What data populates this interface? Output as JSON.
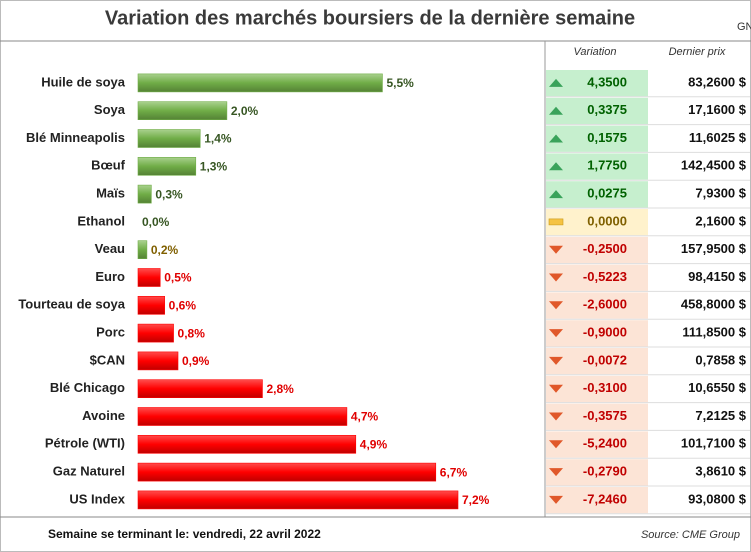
{
  "chart_data": {
    "type": "bar",
    "orientation": "horizontal",
    "title": "Variation des marchés boursiers de la dernière semaine",
    "corner_text": "GN",
    "categories": [
      "Huile de soya",
      "Soya",
      "Blé Minneapolis",
      "Bœuf",
      "Maïs",
      "Ethanol",
      "Veau",
      "Euro",
      "Tourteau de soya",
      "Porc",
      "$CAN",
      "Blé Chicago",
      "Avoine",
      "Pétrole (WTI)",
      "Gaz Naturel",
      "US Index"
    ],
    "values": [
      5.5,
      2.0,
      1.4,
      1.3,
      0.3,
      0.0,
      0.2,
      0.5,
      0.6,
      0.8,
      0.9,
      2.8,
      4.7,
      4.9,
      6.7,
      7.2
    ],
    "value_labels": [
      "5,5%",
      "2,0%",
      "1,4%",
      "1,3%",
      "0,3%",
      "0,0%",
      "0,2%",
      "0,5%",
      "0,6%",
      "0,8%",
      "0,9%",
      "2,8%",
      "4,7%",
      "4,9%",
      "6,7%",
      "7,2%"
    ],
    "colors": [
      "#70ad47",
      "#70ad47",
      "#70ad47",
      "#70ad47",
      "#70ad47",
      "#70ad47",
      "#70ad47",
      "#ff0000",
      "#ff0000",
      "#ff0000",
      "#ff0000",
      "#ff0000",
      "#ff0000",
      "#ff0000",
      "#ff0000",
      "#ff0000"
    ],
    "label_colors": [
      "#375623",
      "#375623",
      "#375623",
      "#375623",
      "#375623",
      "#375623",
      "#806000",
      "#e00000",
      "#e00000",
      "#e00000",
      "#e00000",
      "#e00000",
      "#e00000",
      "#e00000",
      "#e00000",
      "#e00000"
    ]
  },
  "table": {
    "header": [
      "Variation",
      "Dernier prix"
    ],
    "rows": [
      [
        "4,3500",
        "83,2600 $"
      ],
      [
        "0,3375",
        "17,1600 $"
      ],
      [
        "0,1575",
        "11,6025 $"
      ],
      [
        "1,7750",
        "142,4500 $"
      ],
      [
        "0,0275",
        "7,9300 $"
      ],
      [
        "0,0000",
        "2,1600 $"
      ],
      [
        "-0,2500",
        "157,9500 $"
      ],
      [
        "-0,5223",
        "98,4150 $"
      ],
      [
        "-2,6000",
        "458,8000 $"
      ],
      [
        "-0,9000",
        "111,8500 $"
      ],
      [
        "-0,0072",
        "0,7858 $"
      ],
      [
        "-0,3100",
        "10,6550 $"
      ],
      [
        "-0,3575",
        "7,2125 $"
      ],
      [
        "-5,2400",
        "101,7100 $"
      ],
      [
        "-0,2790",
        "3,8610 $"
      ],
      [
        "-7,2460",
        "93,0800 $"
      ]
    ],
    "icons": [
      "up",
      "up",
      "up",
      "up",
      "up",
      "flat",
      "down",
      "down",
      "down",
      "down",
      "down",
      "down",
      "down",
      "down",
      "down",
      "down"
    ]
  },
  "footer": {
    "left": "Semaine se terminant le: vendredi, 22 avril 2022",
    "right": "Source: CME Group"
  }
}
